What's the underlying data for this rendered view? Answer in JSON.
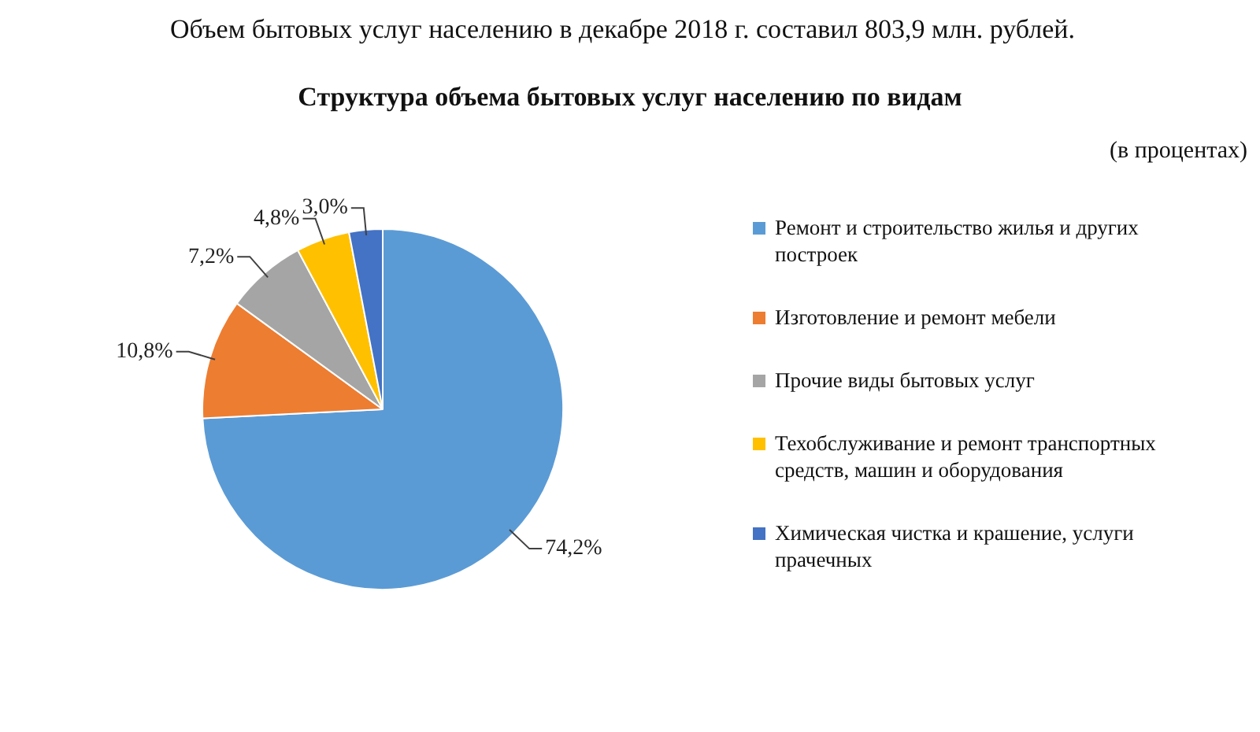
{
  "chart_data": {
    "type": "pie",
    "title": "Структура объема бытовых услуг населению по видам",
    "subtitle": "(в процентах)",
    "annotations": [
      "Объем бытовых услуг населению в декабре 2018 г. составил 803,9 млн. рублей."
    ],
    "categories": [
      "Ремонт и строительство жилья и других построек",
      "Изготовление и ремонт мебели",
      "Прочие виды бытовых услуг",
      "Техобслуживание и ремонт транспортных средств, машин и оборудования",
      "Химическая чистка и крашение, услуги прачечных"
    ],
    "values": [
      74.2,
      10.8,
      7.2,
      4.8,
      3.0
    ],
    "value_labels": [
      "74,2%",
      "10,8%",
      "7,2%",
      "4,8%",
      "3,0%"
    ],
    "colors": [
      "#5b9bd5",
      "#ed7d31",
      "#a5a5a5",
      "#ffc000",
      "#4472c4"
    ],
    "legend": "right"
  }
}
